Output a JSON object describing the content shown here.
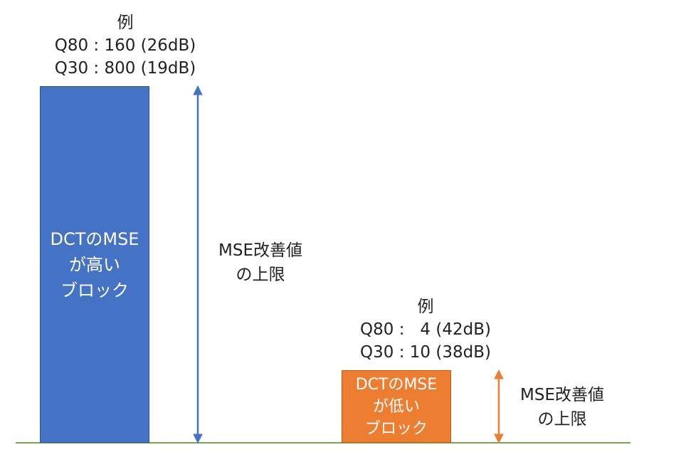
{
  "colors": {
    "high_block": "#4472c4",
    "low_block": "#ed7d31",
    "high_arrow": "#4472c4",
    "low_arrow": "#ed7d31",
    "baseline": "#70ad47"
  },
  "high_block": {
    "example": {
      "heading": "例",
      "q80": "Q80 : 160 (26dB)",
      "q30": "Q30 : 800 (19dB)"
    },
    "lines": [
      "DCTのMSE",
      "が高い",
      "ブロック"
    ],
    "limit_label": [
      "MSE改善値",
      "の上限"
    ]
  },
  "low_block": {
    "example": {
      "heading": "例",
      "q80": "Q80 :   4 (42dB)",
      "q30": "Q30 : 10 (38dB)"
    },
    "lines": [
      "DCTのMSE",
      "が低い",
      "ブロック"
    ],
    "limit_label": [
      "MSE改善値",
      "の上限"
    ]
  }
}
